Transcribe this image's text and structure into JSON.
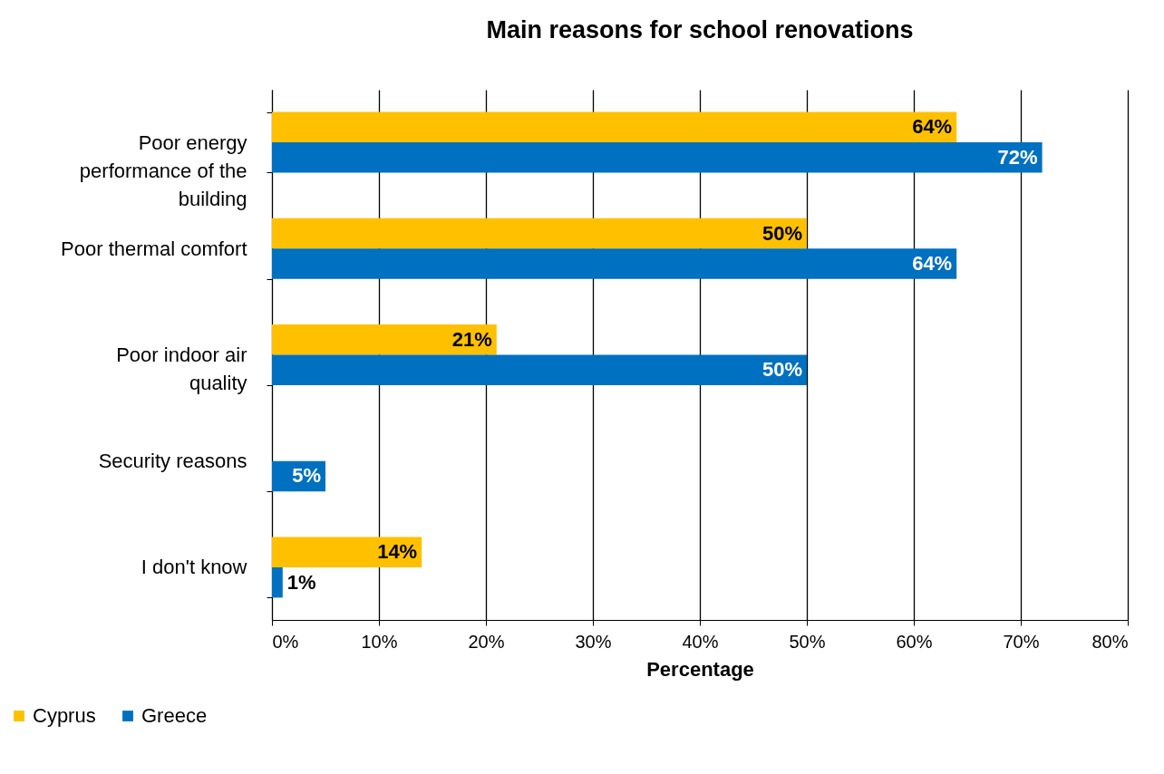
{
  "chart_data": {
    "type": "bar",
    "orientation": "horizontal",
    "title": "Main reasons for school renovations",
    "xlabel": "Percentage",
    "categories": [
      "Poor energy performance of the building",
      "Poor thermal comfort",
      "Poor indoor air quality",
      "Security reasons",
      "I don't know"
    ],
    "series": [
      {
        "name": "Cyprus",
        "color": "#ffc000",
        "values": [
          64,
          50,
          21,
          null,
          14
        ],
        "value_labels": [
          "64%",
          "50%",
          "21%",
          null,
          "14%"
        ]
      },
      {
        "name": "Greece",
        "color": "#0070c0",
        "values": [
          72,
          64,
          50,
          5,
          1
        ],
        "value_labels": [
          "72%",
          "64%",
          "50%",
          "5%",
          "1%"
        ]
      }
    ],
    "xlim": [
      0,
      80
    ],
    "xticks": [
      {
        "value": 0,
        "label": "0%"
      },
      {
        "value": 10,
        "label": "10%"
      },
      {
        "value": 20,
        "label": "20%"
      },
      {
        "value": 30,
        "label": "30%"
      },
      {
        "value": 40,
        "label": "40%"
      },
      {
        "value": 50,
        "label": "50%"
      },
      {
        "value": 60,
        "label": "60%"
      },
      {
        "value": 70,
        "label": "70%"
      },
      {
        "value": 80,
        "label": "80%"
      }
    ],
    "grid": "x",
    "legend": "bottom left"
  }
}
